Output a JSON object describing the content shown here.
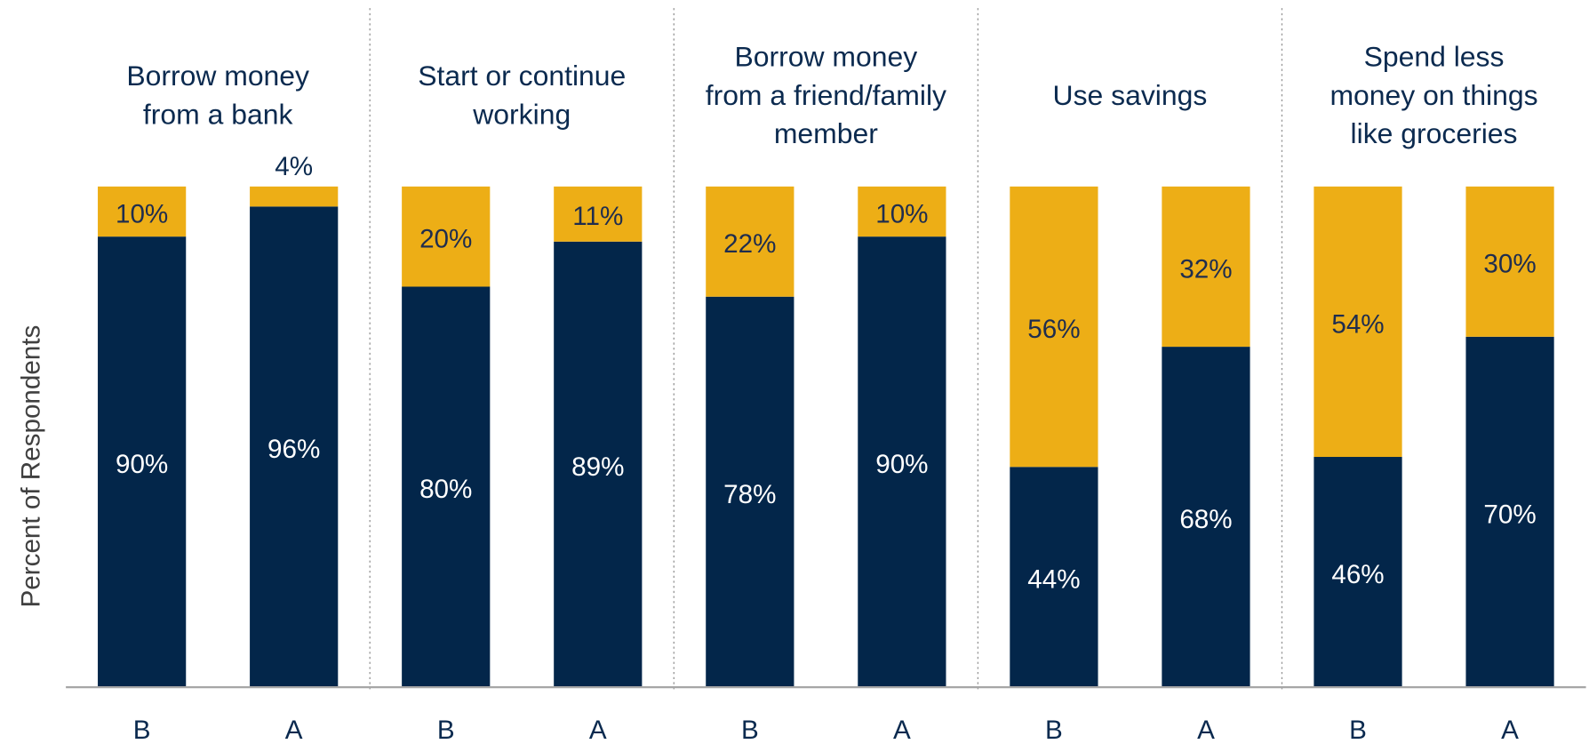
{
  "chart_data": {
    "type": "stacked_bar",
    "y_label": "Percent of Respondents",
    "group_labels": [
      [
        "Borrow money",
        "from a bank"
      ],
      [
        "Start or continue",
        "working"
      ],
      [
        "Borrow money",
        "from a friend/family",
        "member"
      ],
      [
        "Use savings"
      ],
      [
        "Spend less",
        "money on things",
        "like groceries"
      ]
    ],
    "categories": [
      "B",
      "A",
      "B",
      "A",
      "B",
      "A",
      "B",
      "A",
      "B",
      "A"
    ],
    "series": [
      {
        "color": "#03264a",
        "label_color": "#ffffff",
        "values": [
          90,
          96,
          80,
          89,
          78,
          90,
          44,
          68,
          46,
          70
        ],
        "value_labels": [
          "90%",
          "96%",
          "80%",
          "89%",
          "78%",
          "90%",
          "44%",
          "68%",
          "46%",
          "70%"
        ]
      },
      {
        "color": "#edae16",
        "label_color": "#1f2d4e",
        "values": [
          10,
          4,
          20,
          11,
          22,
          10,
          56,
          32,
          54,
          30
        ],
        "value_labels": [
          "10%",
          "4%",
          "20%",
          "11%",
          "22%",
          "10%",
          "56%",
          "32%",
          "54%",
          "30%"
        ]
      }
    ],
    "ylim": [
      0,
      100
    ]
  }
}
